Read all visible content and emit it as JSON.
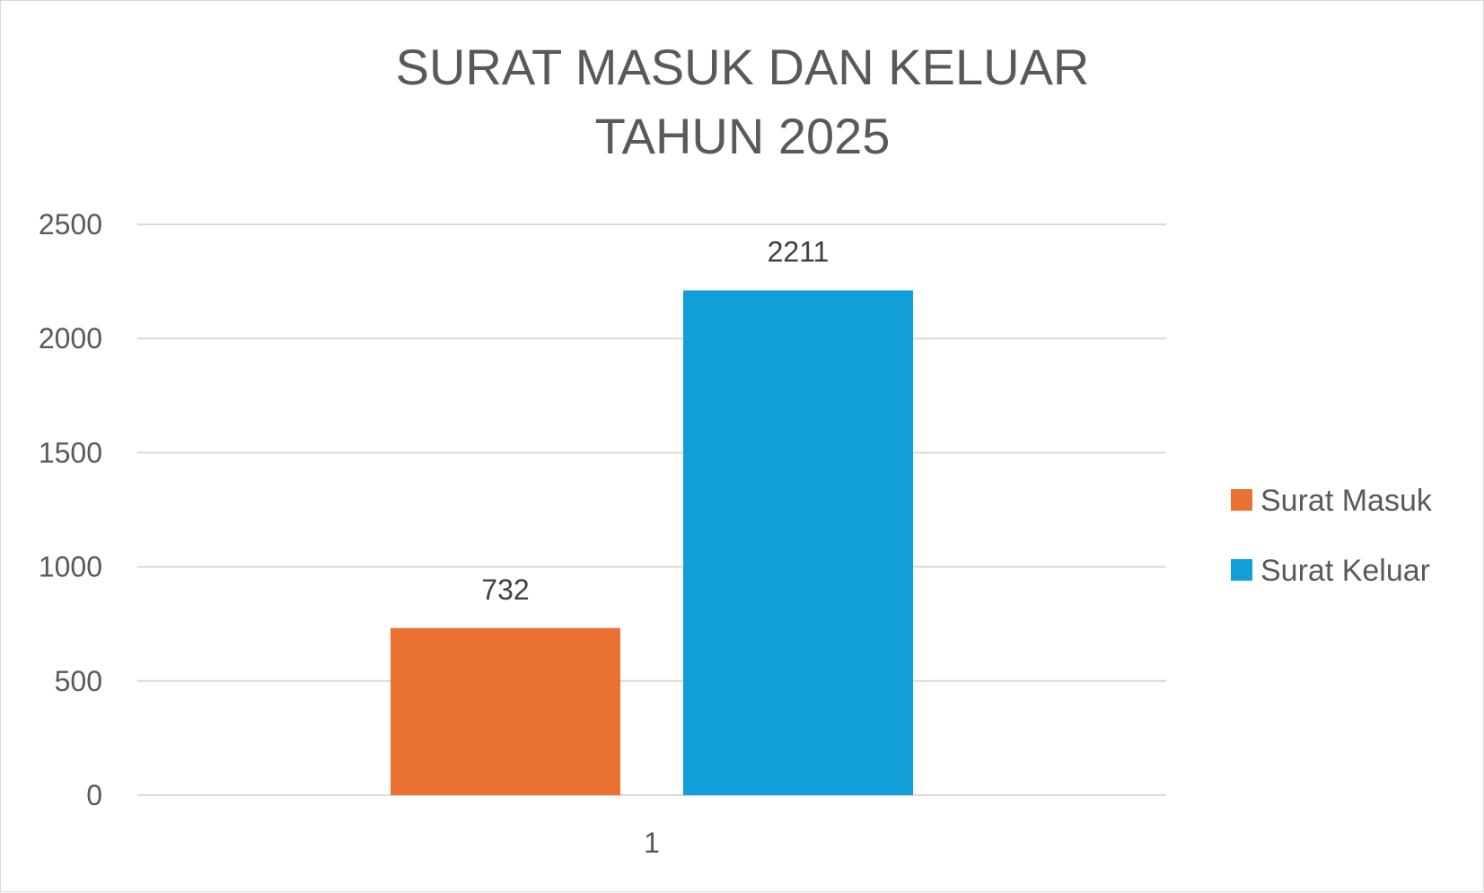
{
  "chart_data": {
    "type": "bar",
    "title": [
      "SURAT MASUK DAN KELUAR",
      "TAHUN 2025"
    ],
    "categories": [
      "1"
    ],
    "series": [
      {
        "name": "Surat Masuk",
        "values": [
          732
        ],
        "color": "#E97132"
      },
      {
        "name": "Surat Keluar",
        "values": [
          2211
        ],
        "color": "#129ED8"
      }
    ],
    "ylim": [
      0,
      2500
    ],
    "yticks": [
      0,
      500,
      1000,
      1500,
      2000,
      2500
    ],
    "grid": true,
    "data_labels": true,
    "legend_position": "right"
  }
}
